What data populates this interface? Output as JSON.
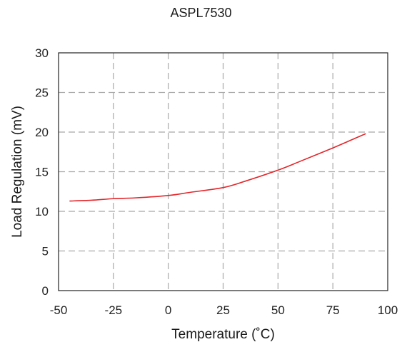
{
  "chart_data": {
    "type": "line",
    "title": "ASPL7530",
    "xlabel": "Temperature (˚C)",
    "ylabel": "Load Regulation (mV)",
    "xlim": [
      -50,
      100
    ],
    "ylim": [
      0,
      30
    ],
    "xticks": [
      -50,
      -25,
      0,
      25,
      50,
      75,
      100
    ],
    "yticks": [
      0,
      5,
      10,
      15,
      20,
      25,
      30
    ],
    "grid": true,
    "series": [
      {
        "color": "#e3262a",
        "x": [
          -45,
          -35,
          -25,
          -15,
          0,
          10,
          25,
          35,
          50,
          60,
          75,
          85,
          90
        ],
        "y": [
          11.3,
          11.4,
          11.6,
          11.7,
          12.0,
          12.4,
          13.0,
          13.8,
          15.2,
          16.3,
          18.0,
          19.2,
          19.8
        ]
      }
    ]
  }
}
